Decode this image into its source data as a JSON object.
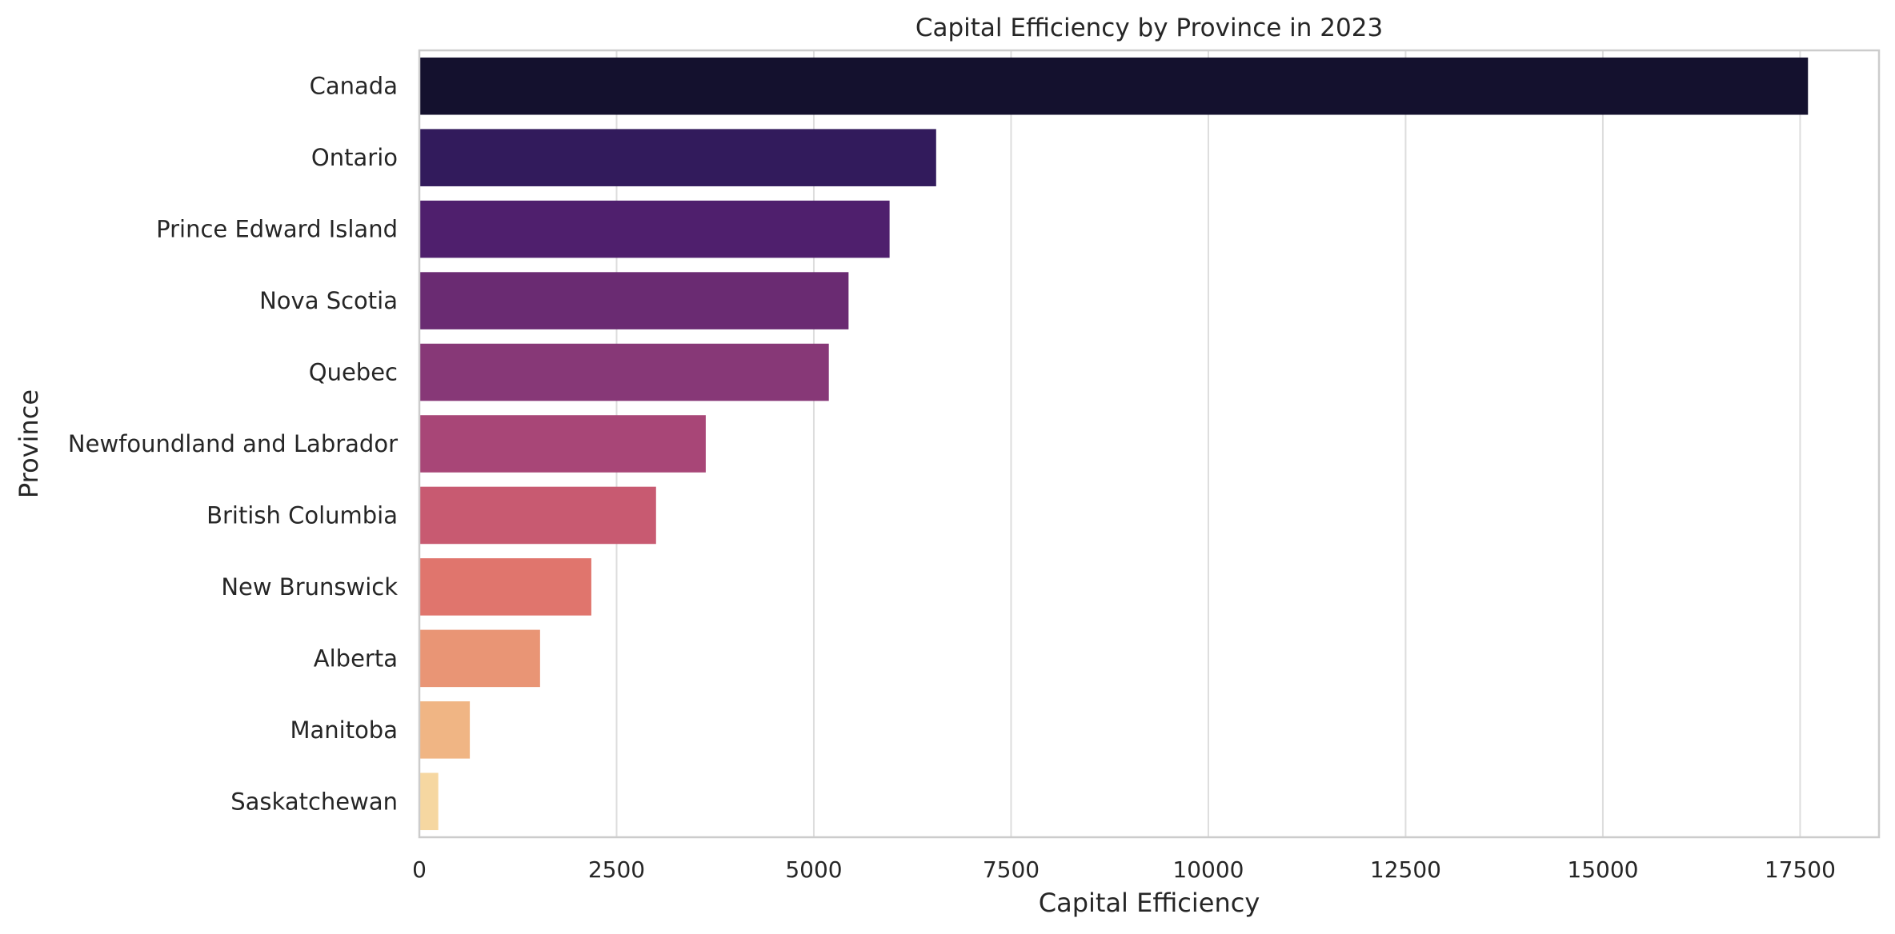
{
  "chart_data": {
    "type": "bar",
    "orientation": "horizontal",
    "title": "Capital Efficiency by Province in 2023",
    "xlabel": "Capital Efficiency",
    "ylabel": "Province",
    "categories": [
      "Canada",
      "Ontario",
      "Prince Edward Island",
      "Nova Scotia",
      "Quebec",
      "Newfoundland and Labrador",
      "British Columbia",
      "New Brunswick",
      "Alberta",
      "Manitoba",
      "Saskatchewan"
    ],
    "values": [
      17600,
      6550,
      5960,
      5440,
      5190,
      3630,
      3000,
      2180,
      1530,
      640,
      240
    ],
    "colors": [
      "#14112e",
      "#321b5c",
      "#4f1f6d",
      "#6a2b72",
      "#873877",
      "#a84677",
      "#c85a71",
      "#e0756d",
      "#e99575",
      "#f0b584",
      "#f6d7a1"
    ],
    "xlim": [
      0,
      18500
    ],
    "xticks": [
      0,
      2500,
      5000,
      7500,
      10000,
      12500,
      15000,
      17500
    ],
    "xtick_labels": [
      "0",
      "2500",
      "5000",
      "7500",
      "10000",
      "12500",
      "15000",
      "17500"
    ],
    "grid": "vertical",
    "legend": "none"
  }
}
